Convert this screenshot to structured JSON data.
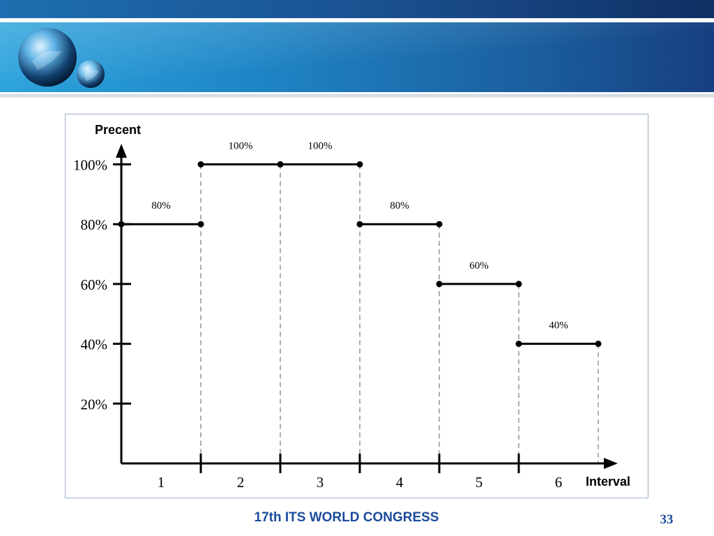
{
  "slide": {
    "footer_title": "17th ITS WORLD CONGRESS",
    "page_number": "33"
  },
  "theme": {
    "header_dark": "#163f80",
    "header_light": "#2aa2dc",
    "footer_color": "#1b4b9b"
  },
  "chart_data": {
    "type": "step-line",
    "ylabel": "Precent",
    "xlabel": "Interval",
    "yticks": [
      "20%",
      "40%",
      "60%",
      "80%",
      "100%"
    ],
    "categories": [
      "1",
      "2",
      "3",
      "4",
      "5",
      "6"
    ],
    "values": [
      80,
      100,
      100,
      80,
      60,
      40
    ],
    "value_labels": [
      "80%",
      "100%",
      "100%",
      "80%",
      "60%",
      "40%"
    ],
    "ylim": [
      0,
      100
    ],
    "grid": false
  }
}
